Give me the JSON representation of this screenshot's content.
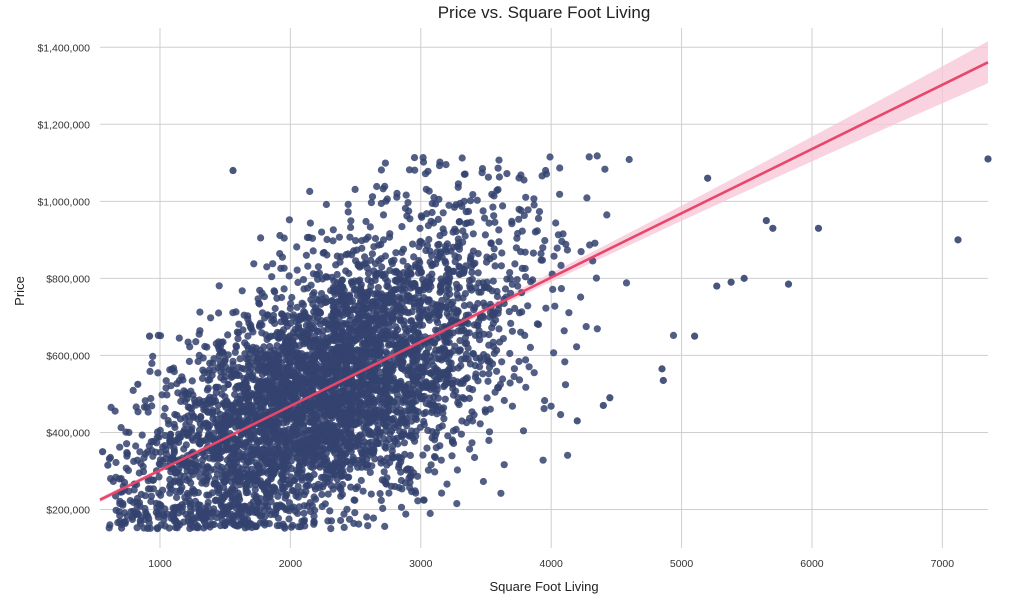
{
  "chart_data": {
    "type": "scatter",
    "title": "Price vs. Square Foot Living",
    "xlabel": "Square Foot Living",
    "ylabel": "Price",
    "xlim": [
      540,
      7350
    ],
    "ylim": [
      100000,
      1450000
    ],
    "x_ticks": [
      1000,
      2000,
      3000,
      4000,
      5000,
      6000,
      7000
    ],
    "y_ticks": [
      200000,
      400000,
      600000,
      800000,
      1000000,
      1200000,
      1400000
    ],
    "x_tick_labels": [
      "1000",
      "2000",
      "3000",
      "4000",
      "5000",
      "6000",
      "7000"
    ],
    "y_tick_labels": [
      "$200,000",
      "$400,000",
      "$600,000",
      "$800,000",
      "$1,000,000",
      "$1,200,000",
      "$1,400,000"
    ],
    "grid": true,
    "point_color": "#34426e",
    "regression_color": "#e8466a",
    "confidence_band_color": "#f7c6d6",
    "regression_line": {
      "slope": 166.8,
      "intercept": 135000,
      "x_range": [
        540,
        7350
      ]
    },
    "outlier_points": [
      {
        "x": 7350,
        "y": 1110000
      },
      {
        "x": 7120,
        "y": 900000
      },
      {
        "x": 6050,
        "y": 930000
      },
      {
        "x": 5820,
        "y": 785000
      },
      {
        "x": 5650,
        "y": 950000
      },
      {
        "x": 5700,
        "y": 930000
      },
      {
        "x": 5480,
        "y": 800000
      },
      {
        "x": 5380,
        "y": 790000
      },
      {
        "x": 5270,
        "y": 780000
      },
      {
        "x": 5200,
        "y": 1060000
      },
      {
        "x": 5100,
        "y": 650000
      },
      {
        "x": 4860,
        "y": 535000
      },
      {
        "x": 4850,
        "y": 565000
      },
      {
        "x": 4450,
        "y": 490000
      },
      {
        "x": 4400,
        "y": 470000
      },
      {
        "x": 4200,
        "y": 430000
      },
      {
        "x": 1560,
        "y": 1080000
      },
      {
        "x": 560,
        "y": 350000
      },
      {
        "x": 600,
        "y": 315000
      },
      {
        "x": 700,
        "y": 245000
      },
      {
        "x": 830,
        "y": 525000
      },
      {
        "x": 920,
        "y": 650000
      }
    ],
    "point_cloud_model": {
      "n_points": 4500,
      "x_mean": 2250,
      "x_sd": 720,
      "x_min": 600,
      "x_max": 4950,
      "y_slope": 166.8,
      "y_intercept": 135000,
      "y_sd": 145000,
      "y_min": 150000,
      "y_max": 1120000
    }
  }
}
